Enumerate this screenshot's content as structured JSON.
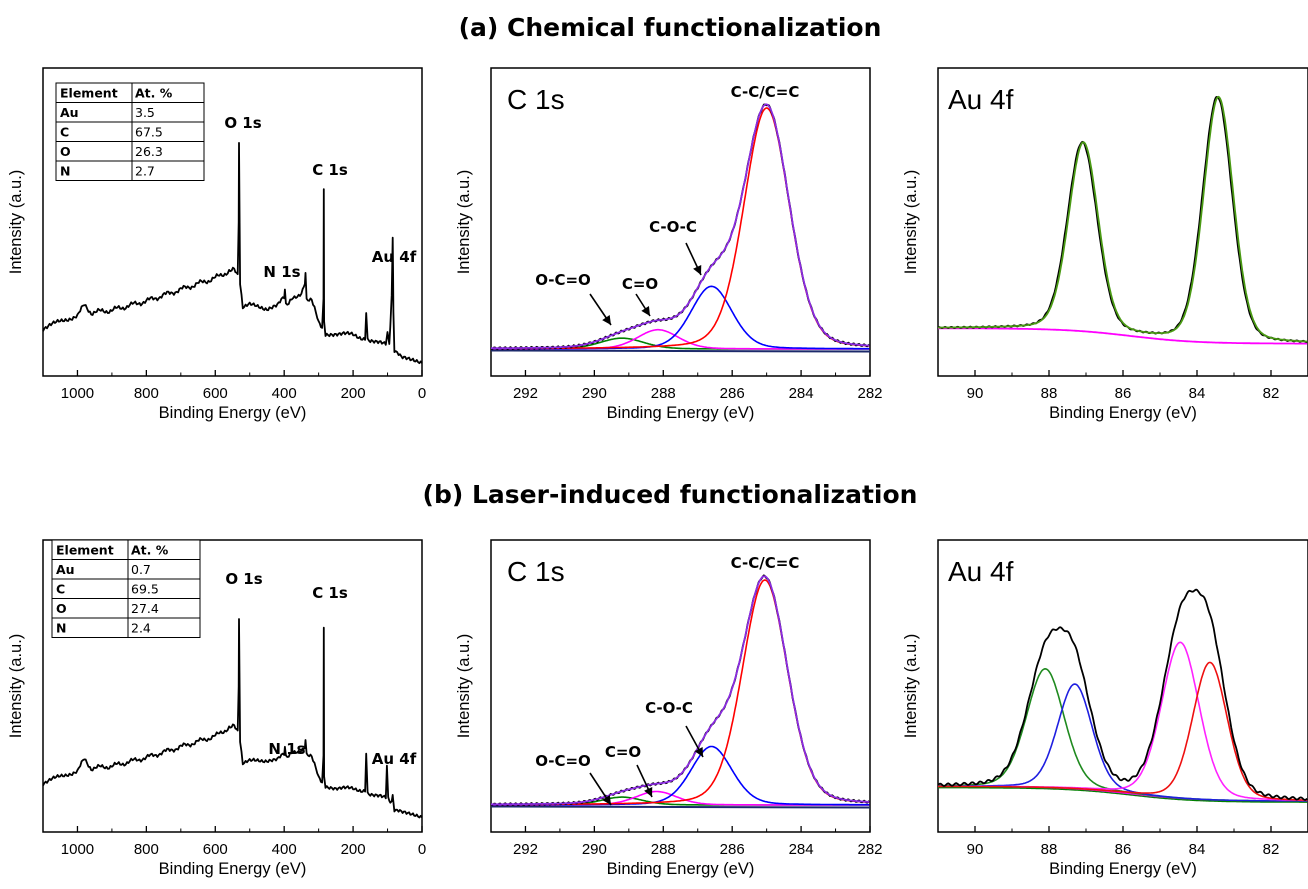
{
  "titles": {
    "a": "(a) Chemical functionalization",
    "b": "(b) Laser-induced functionalization"
  },
  "colors": {
    "envelope": "#000000",
    "cc": "#ff0000",
    "coc": "#0000ff",
    "co": "#ff00ff",
    "oco": "#008000",
    "fit": "#8b2be2",
    "background": "#1c2a6b",
    "au_fit": "#4a9a14",
    "au_bg": "#ff00ff",
    "au_b_g": "#1f8a1f",
    "au_b_b": "#1f1fe0",
    "au_b_m": "#ff22ff",
    "au_b_r": "#ee1010"
  },
  "chart_data": [
    {
      "panel": "a-survey",
      "type": "line",
      "xlabel": "Binding Energy (eV)",
      "ylabel": "Intensity (a.u.)",
      "xlim": [
        1100,
        0
      ],
      "x_ticks": [
        1000,
        800,
        600,
        400,
        200,
        0
      ],
      "annotations": [
        "O 1s",
        "N 1s",
        "C 1s",
        "Au 4f"
      ],
      "table": {
        "headers": [
          "Element",
          "At. %"
        ],
        "rows": [
          [
            "Au",
            "3.5"
          ],
          [
            "C",
            "67.5"
          ],
          [
            "O",
            "26.3"
          ],
          [
            "N",
            "2.7"
          ]
        ]
      },
      "series": [
        {
          "x": [
            1100,
            1050,
            1000,
            980,
            960,
            900,
            800,
            700,
            600,
            560,
            545,
            535,
            532,
            531,
            528,
            520,
            500,
            450,
            420,
            400,
            398,
            395,
            370,
            350,
            340,
            338,
            335,
            320,
            300,
            290,
            286,
            285,
            284,
            280,
            250,
            200,
            165,
            162,
            158,
            150,
            120,
            105,
            100,
            95,
            92,
            88,
            85,
            84,
            83,
            80,
            60,
            30,
            0
          ],
          "y": [
            0.18,
            0.21,
            0.24,
            0.28,
            0.25,
            0.26,
            0.3,
            0.35,
            0.4,
            0.43,
            0.44,
            0.42,
            0.65,
            1.0,
            0.38,
            0.28,
            0.28,
            0.27,
            0.29,
            0.31,
            0.36,
            0.29,
            0.31,
            0.34,
            0.38,
            0.42,
            0.31,
            0.31,
            0.2,
            0.18,
            0.3,
            0.78,
            0.22,
            0.16,
            0.16,
            0.15,
            0.14,
            0.26,
            0.14,
            0.13,
            0.12,
            0.11,
            0.16,
            0.12,
            0.2,
            0.33,
            0.57,
            0.42,
            0.25,
            0.09,
            0.05,
            0.04,
            0.03
          ]
        }
      ]
    },
    {
      "panel": "a-c1s",
      "type": "line",
      "label": "C 1s",
      "xlabel": "Binding Energy (eV)",
      "ylabel": "Intensity (a.u.)",
      "xlim": [
        293,
        282
      ],
      "x_ticks": [
        292,
        290,
        288,
        286,
        284,
        282
      ],
      "annotations": [
        "C-C/C=C",
        "C-O-C",
        "C=O",
        "O-C=O"
      ],
      "peaks": [
        {
          "name": "C-C/C=C",
          "center": 285.0,
          "fwhm": 1.55,
          "height": 1.0
        },
        {
          "name": "C-O-C",
          "center": 286.6,
          "fwhm": 1.4,
          "height": 0.26
        },
        {
          "name": "C=O",
          "center": 288.15,
          "fwhm": 1.4,
          "height": 0.08
        },
        {
          "name": "O-C=O",
          "center": 289.2,
          "fwhm": 1.5,
          "height": 0.045
        }
      ]
    },
    {
      "panel": "a-au4f",
      "type": "line",
      "label": "Au 4f",
      "xlabel": "Binding Energy (eV)",
      "ylabel": "Intensity (a.u.)",
      "xlim": [
        91,
        81
      ],
      "x_ticks": [
        90,
        88,
        86,
        84,
        82
      ],
      "peaks": [
        {
          "center": 87.1,
          "fwhm": 0.95,
          "height": 0.76
        },
        {
          "center": 83.45,
          "fwhm": 0.95,
          "height": 0.99
        }
      ]
    },
    {
      "panel": "b-survey",
      "type": "line",
      "xlabel": "Binding Energy (eV)",
      "ylabel": "Intensity (a.u.)",
      "xlim": [
        1100,
        0
      ],
      "x_ticks": [
        1000,
        800,
        600,
        400,
        200,
        0
      ],
      "annotations": [
        "O 1s",
        "N 1s",
        "C 1s",
        "Au 4f"
      ],
      "table": {
        "headers": [
          "Element",
          "At. %"
        ],
        "rows": [
          [
            "Au",
            "0.7"
          ],
          [
            "C",
            "69.5"
          ],
          [
            "O",
            "27.4"
          ],
          [
            "N",
            "2.4"
          ]
        ]
      },
      "series": [
        {
          "x": [
            1100,
            1050,
            1000,
            980,
            960,
            900,
            800,
            700,
            600,
            560,
            545,
            535,
            532,
            531,
            528,
            520,
            500,
            450,
            420,
            400,
            398,
            395,
            370,
            350,
            340,
            338,
            335,
            320,
            300,
            290,
            286,
            285,
            284,
            280,
            250,
            200,
            165,
            162,
            158,
            150,
            120,
            105,
            102,
            98,
            92,
            88,
            85,
            84,
            83,
            80,
            60,
            30,
            0
          ],
          "y": [
            0.2,
            0.23,
            0.26,
            0.31,
            0.27,
            0.28,
            0.32,
            0.37,
            0.42,
            0.46,
            0.47,
            0.45,
            0.66,
            0.98,
            0.4,
            0.3,
            0.3,
            0.31,
            0.32,
            0.33,
            0.38,
            0.33,
            0.34,
            0.36,
            0.37,
            0.4,
            0.34,
            0.33,
            0.22,
            0.2,
            0.32,
            0.92,
            0.24,
            0.19,
            0.18,
            0.17,
            0.17,
            0.35,
            0.16,
            0.15,
            0.14,
            0.13,
            0.29,
            0.13,
            0.12,
            0.12,
            0.14,
            0.13,
            0.11,
            0.08,
            0.06,
            0.05,
            0.04
          ]
        }
      ]
    },
    {
      "panel": "b-c1s",
      "type": "line",
      "label": "C 1s",
      "xlabel": "Binding Energy (eV)",
      "ylabel": "Intensity (a.u.)",
      "xlim": [
        293,
        282
      ],
      "x_ticks": [
        292,
        290,
        288,
        286,
        284,
        282
      ],
      "annotations": [
        "C-C/C=C",
        "C-O-C",
        "C=O",
        "O-C=O"
      ],
      "peaks": [
        {
          "name": "C-C/C=C",
          "center": 285.05,
          "fwhm": 1.55,
          "height": 1.0
        },
        {
          "name": "C-O-C",
          "center": 286.6,
          "fwhm": 1.4,
          "height": 0.26
        },
        {
          "name": "C=O",
          "center": 288.2,
          "fwhm": 1.4,
          "height": 0.06
        },
        {
          "name": "O-C=O",
          "center": 289.2,
          "fwhm": 1.4,
          "height": 0.035
        }
      ]
    },
    {
      "panel": "b-au4f",
      "type": "line",
      "label": "Au 4f",
      "xlabel": "Binding Energy (eV)",
      "ylabel": "Intensity (a.u.)",
      "xlim": [
        91,
        81
      ],
      "x_ticks": [
        90,
        88,
        86,
        84,
        82
      ],
      "peaks": [
        {
          "center": 88.1,
          "fwhm": 1.2,
          "height": 0.51
        },
        {
          "center": 87.3,
          "fwhm": 1.1,
          "height": 0.45
        },
        {
          "center": 84.45,
          "fwhm": 1.2,
          "height": 0.67
        },
        {
          "center": 83.65,
          "fwhm": 1.1,
          "height": 0.59
        }
      ]
    }
  ]
}
